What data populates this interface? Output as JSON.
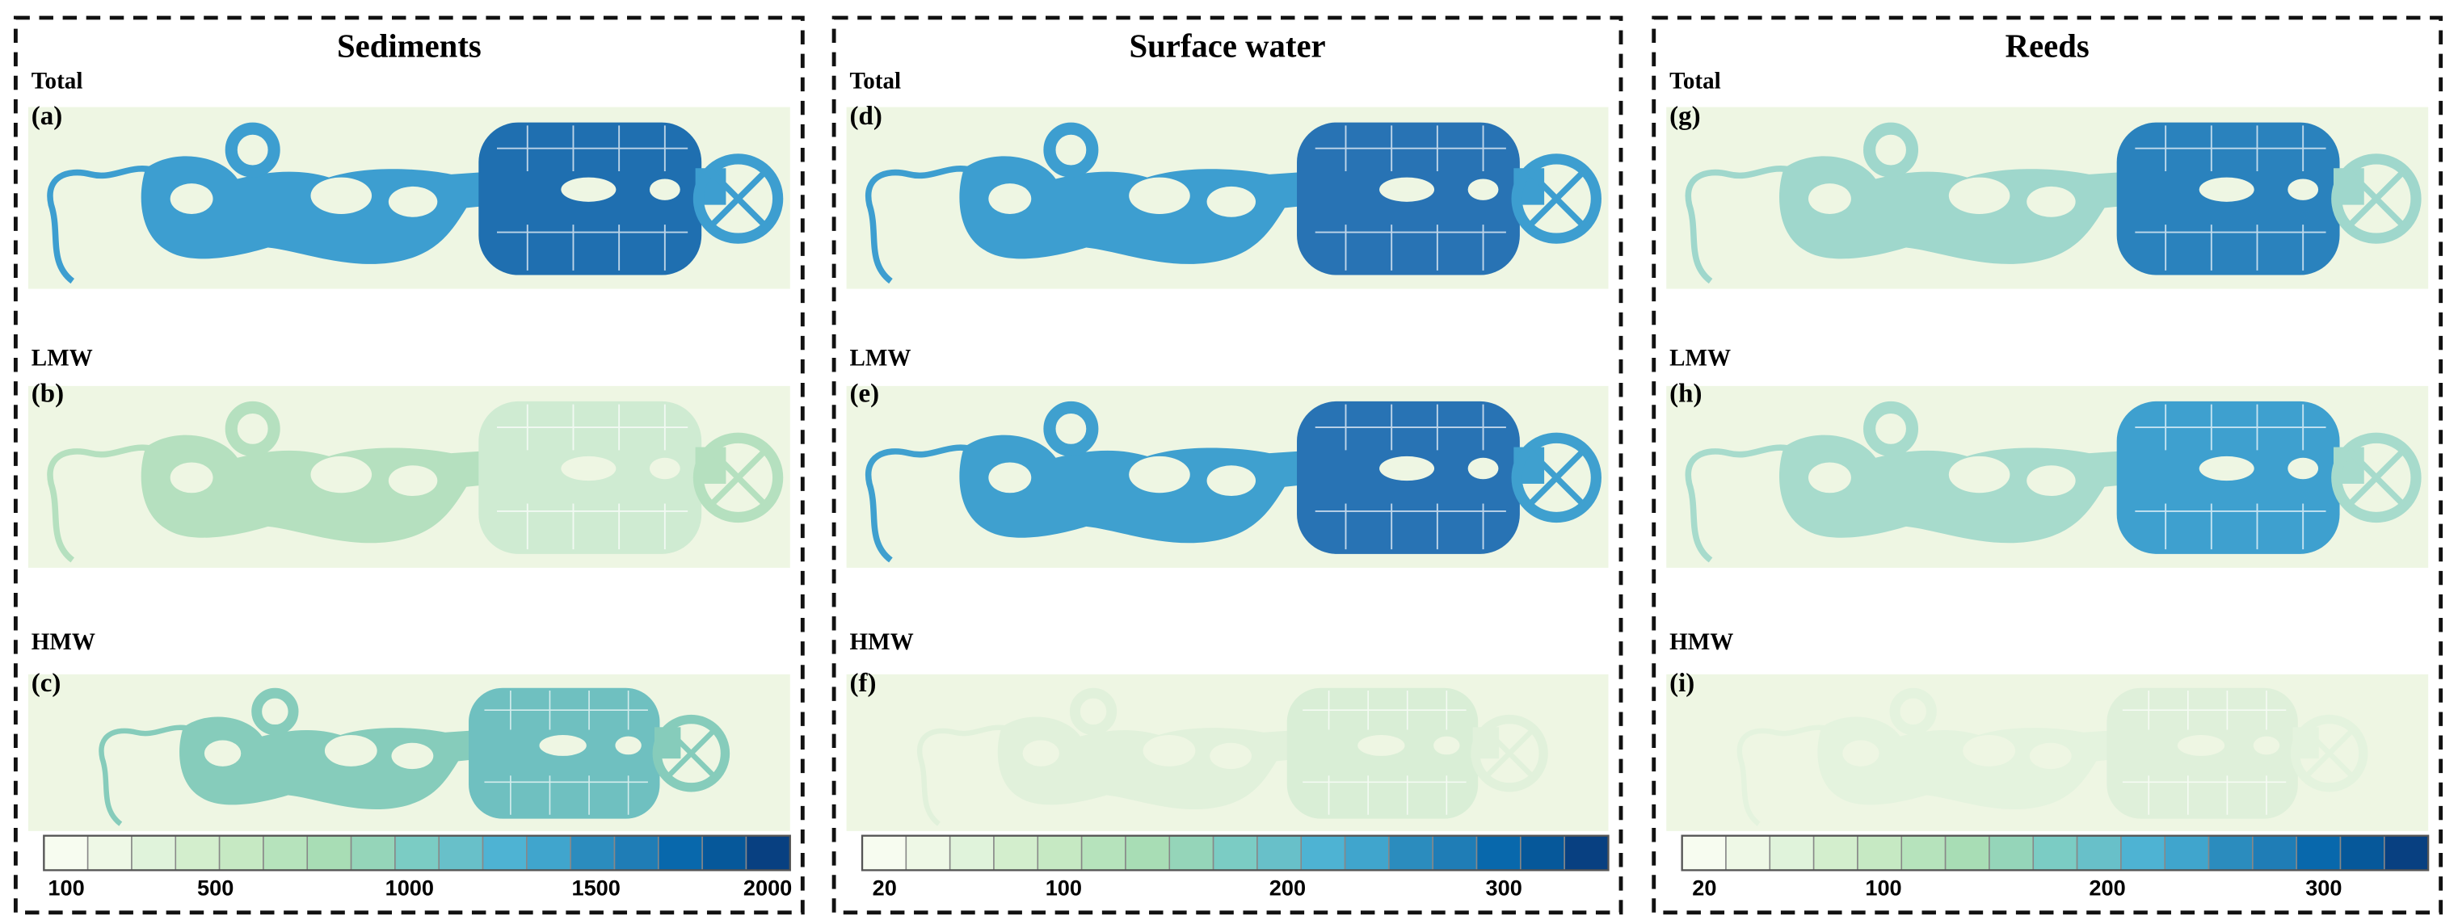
{
  "panels": [
    {
      "title": "Sediments",
      "rows": [
        {
          "group": "Total",
          "label": "(a)"
        },
        {
          "group": "LMW",
          "label": "(b)"
        },
        {
          "group": "HMW",
          "label": "(c)"
        }
      ],
      "colorbar": {
        "ticks": [
          "100",
          "500",
          "1000",
          "1500",
          "2000"
        ]
      }
    },
    {
      "title": "Surface water",
      "rows": [
        {
          "group": "Total",
          "label": "(d)"
        },
        {
          "group": "LMW",
          "label": "(e)"
        },
        {
          "group": "HMW",
          "label": "(f)"
        }
      ],
      "colorbar": {
        "ticks": [
          "20",
          "100",
          "200",
          "300"
        ]
      }
    },
    {
      "title": "Reeds",
      "rows": [
        {
          "group": "Total",
          "label": "(g)"
        },
        {
          "group": "LMW",
          "label": "(h)"
        },
        {
          "group": "HMW",
          "label": "(i)"
        }
      ],
      "colorbar": {
        "ticks": [
          "20",
          "100",
          "200",
          "300"
        ]
      }
    }
  ]
}
